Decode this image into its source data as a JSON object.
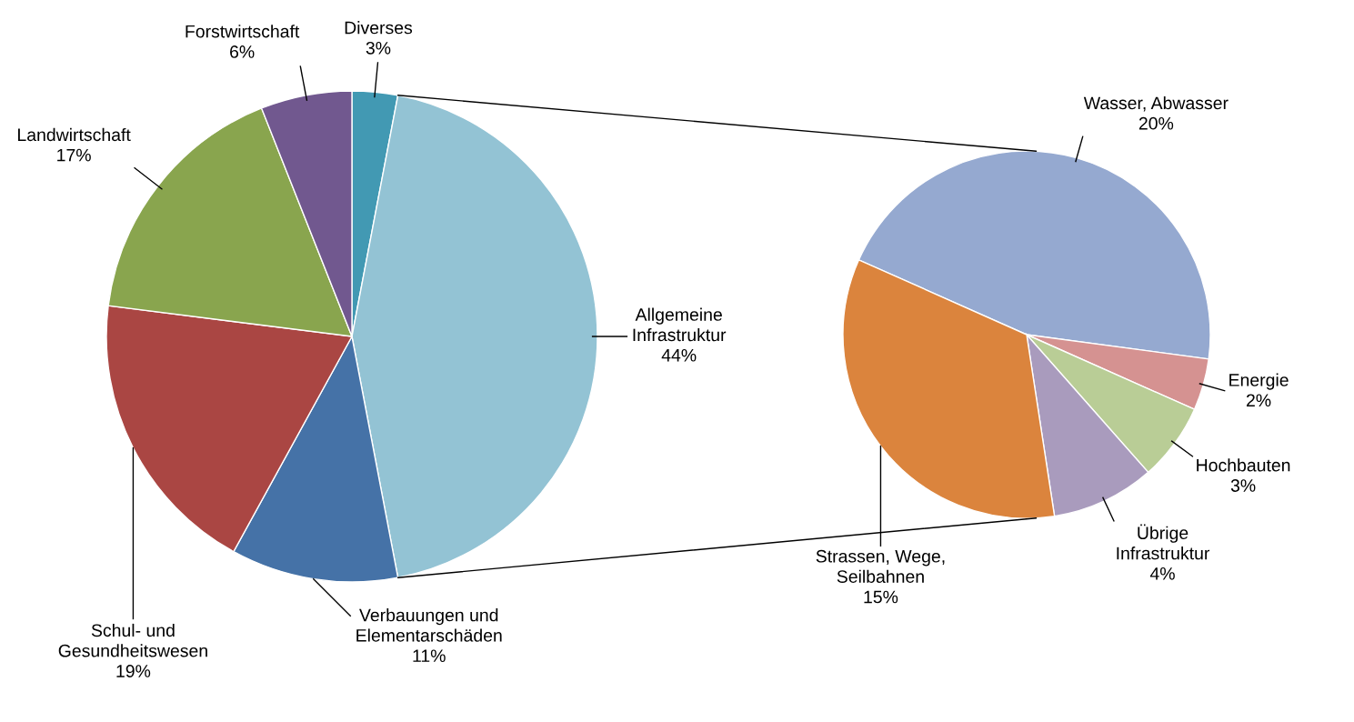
{
  "chart_data": [
    {
      "type": "pie",
      "categories": [
        "Diverses",
        "Allgemeine\nInfrastruktur",
        "Verbauungen und\nElementarschäden",
        "Schul- und\nGesundheitswesen",
        "Landwirtschaft",
        "Forstwirtschaft"
      ],
      "values": [
        3,
        44,
        11,
        19,
        17,
        6
      ],
      "value_labels": [
        "3%",
        "44%",
        "11%",
        "19%",
        "17%",
        "6%"
      ],
      "colors": [
        "#4299b3",
        "#93c3d4",
        "#4572a7",
        "#aa4643",
        "#89a54e",
        "#71588f"
      ]
    },
    {
      "type": "pie",
      "categories": [
        "Wasser, Abwasser",
        "Energie",
        "Hochbauten",
        "Übrige\nInfrastruktur",
        "Strassen, Wege,\nSeilbahnen"
      ],
      "values": [
        20,
        2,
        3,
        4,
        15
      ],
      "value_labels": [
        "20%",
        "2%",
        "3%",
        "4%",
        "15%"
      ],
      "colors": [
        "#95a9d0",
        "#d59291",
        "#b9cd96",
        "#a99bbd",
        "#db843d"
      ]
    }
  ]
}
